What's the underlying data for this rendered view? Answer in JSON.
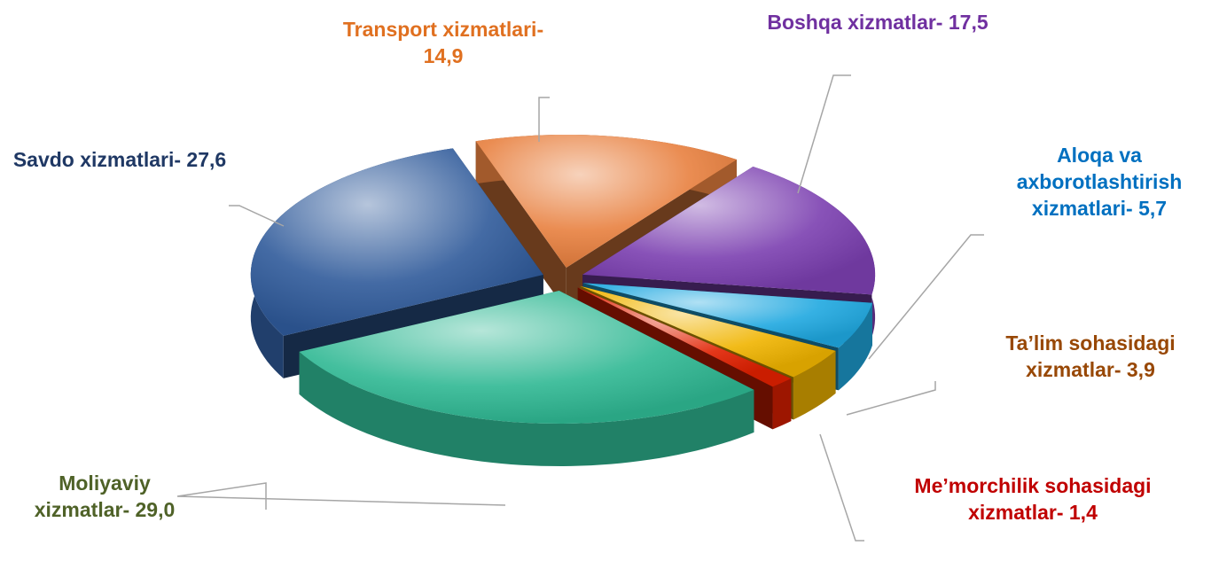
{
  "chart_data": {
    "type": "pie",
    "categories": [
      "Transport xizmatlari-",
      "Boshqa xizmatlar-",
      "Aloqa va axborotlashtirish xizmatlari-",
      "Ta’lim sohasidagi xizmatlar-",
      "Me’morchilik sohasidagi xizmatlar-",
      "Moliyaviy xizmatlar-",
      "Savdo xizmatlari-"
    ],
    "values": [
      14.9,
      17.5,
      5.7,
      3.9,
      1.4,
      29,
      27.6
    ],
    "value_labels": [
      "14,9",
      "17,5",
      "5,7",
      "3,9",
      "1,4",
      "29,0",
      "27,6"
    ],
    "colors": [
      "#e8803f",
      "#7b3fb0",
      "#1fa8e0",
      "#f0b400",
      "#e02000",
      "#2fb893",
      "#2f5a9a"
    ],
    "label_colors": [
      "#e07020",
      "#7030a0",
      "#0070c0",
      "#984806",
      "#c00000",
      "#4f6228",
      "#1f3864"
    ]
  }
}
